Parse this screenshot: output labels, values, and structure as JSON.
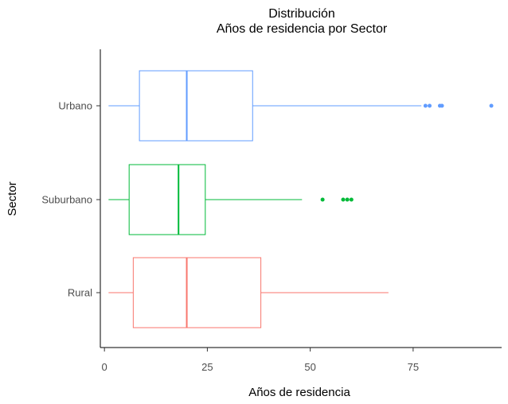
{
  "chart_data": {
    "type": "boxplot",
    "orientation": "horizontal",
    "title": [
      "Distribución",
      "Años de residencia por Sector"
    ],
    "xlabel": "Años de residencia",
    "ylabel": "Sector",
    "xlim": [
      -1,
      96.5
    ],
    "xticks": [
      0,
      25,
      50,
      75
    ],
    "grid": false,
    "legend": "none",
    "categories": [
      "Urbano",
      "Suburbano",
      "Rural"
    ],
    "series": [
      {
        "category": "Urbano",
        "color": "#619CFF",
        "whisker_low": 1,
        "q1": 8.5,
        "median": 20,
        "q3": 36,
        "whisker_high": 77,
        "outliers": [
          78,
          79,
          81.5,
          82,
          94
        ]
      },
      {
        "category": "Suburbano",
        "color": "#00BA38",
        "whisker_low": 1,
        "q1": 6,
        "median": 18,
        "q3": 24.5,
        "whisker_high": 48,
        "outliers": [
          53,
          58,
          59,
          60
        ]
      },
      {
        "category": "Rural",
        "color": "#F8766D",
        "whisker_low": 1,
        "q1": 7,
        "median": 20,
        "q3": 38,
        "whisker_high": 69,
        "outliers": []
      }
    ]
  }
}
